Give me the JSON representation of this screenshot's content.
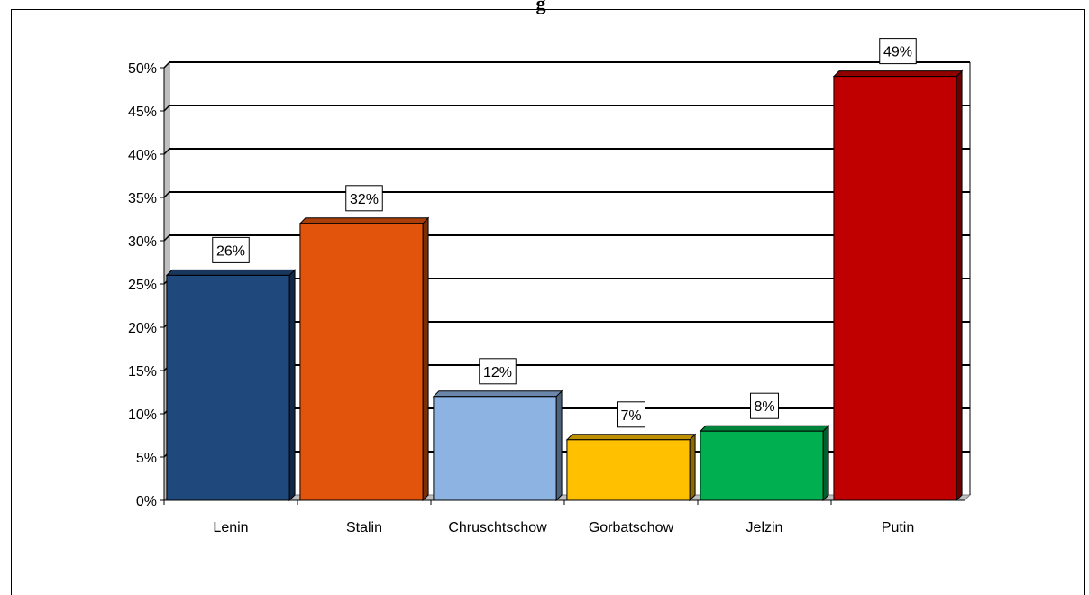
{
  "chart_data": {
    "type": "bar",
    "title_fragment": "g",
    "categories": [
      "Lenin",
      "Stalin",
      "Chruschtschow",
      "Gorbatschow",
      "Jelzin",
      "Putin"
    ],
    "values": [
      26,
      32,
      12,
      7,
      8,
      49
    ],
    "value_labels": [
      "26%",
      "32%",
      "12%",
      "7%",
      "8%",
      "49%"
    ],
    "y_ticks": [
      "0%",
      "5%",
      "10%",
      "15%",
      "20%",
      "25%",
      "30%",
      "35%",
      "40%",
      "45%",
      "50%"
    ],
    "ylim": [
      0,
      50
    ],
    "grid": true,
    "legend": "none",
    "colors": [
      "#1F497D",
      "#E2540C",
      "#8DB3E2",
      "#FFC000",
      "#00B050",
      "#C00000"
    ]
  }
}
